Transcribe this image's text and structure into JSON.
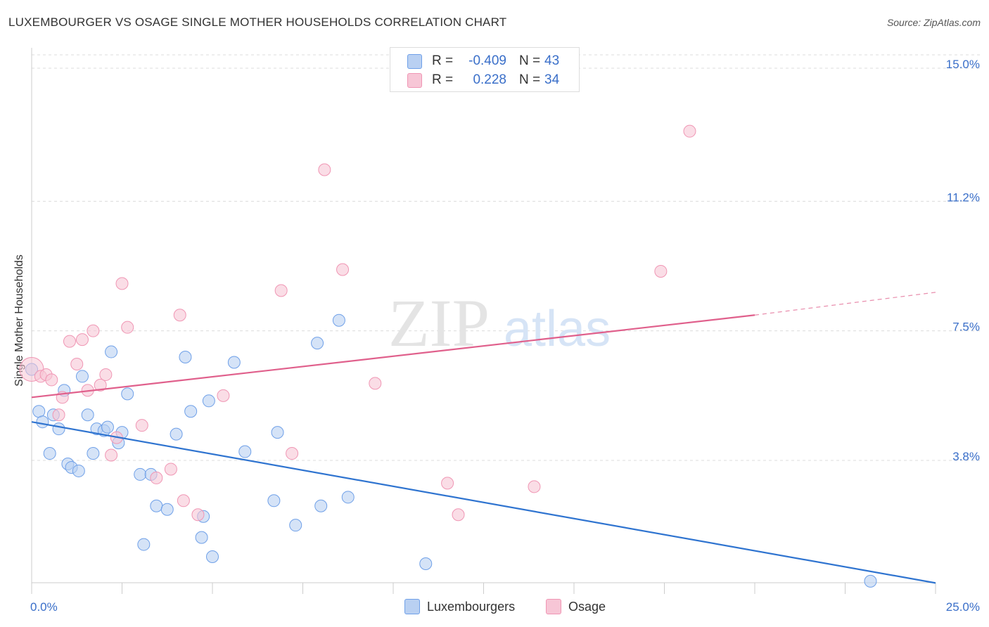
{
  "chart_data": {
    "type": "scatter",
    "title": "LUXEMBOURGER VS OSAGE SINGLE MOTHER HOUSEHOLDS CORRELATION CHART",
    "source": "Source: ZipAtlas.com",
    "ylabel": "Single Mother Households",
    "xlabel": "",
    "xlim": [
      0,
      25
    ],
    "ylim": [
      0,
      15.5
    ],
    "x_tick_labels": [
      "0.0%",
      "25.0%"
    ],
    "y_ticks": [
      {
        "value": 15.0,
        "label": "15.0%"
      },
      {
        "value": 11.2,
        "label": "11.2%"
      },
      {
        "value": 7.5,
        "label": "7.5%"
      },
      {
        "value": 3.8,
        "label": "3.8%"
      }
    ],
    "watermark": "ZIPatlas",
    "legend": [
      {
        "r_label": "R =",
        "r_value": "-0.409",
        "n_label": "N =",
        "n_value": "43"
      },
      {
        "r_label": "R =",
        "r_value": "0.228",
        "n_label": "N =",
        "n_value": "34"
      }
    ],
    "series": [
      {
        "name": "Luxembourgers",
        "color": "#6fa0e8",
        "fill": "#b9d0f2",
        "line_color": "#2f74d0",
        "trend": {
          "x0": 0,
          "y0": 4.9,
          "x1": 25,
          "y1": 0.3
        },
        "points": [
          [
            0.0,
            6.4
          ],
          [
            0.2,
            5.2
          ],
          [
            0.3,
            4.9
          ],
          [
            0.5,
            4.0
          ],
          [
            0.6,
            5.1
          ],
          [
            0.75,
            4.7
          ],
          [
            0.9,
            5.8
          ],
          [
            1.0,
            3.7
          ],
          [
            1.1,
            3.6
          ],
          [
            1.3,
            3.5
          ],
          [
            1.4,
            6.2
          ],
          [
            1.55,
            5.1
          ],
          [
            1.7,
            4.0
          ],
          [
            1.8,
            4.7
          ],
          [
            2.0,
            4.65
          ],
          [
            2.1,
            4.75
          ],
          [
            2.2,
            6.9
          ],
          [
            2.4,
            4.3
          ],
          [
            2.5,
            4.6
          ],
          [
            2.65,
            5.7
          ],
          [
            3.0,
            3.4
          ],
          [
            3.1,
            1.4
          ],
          [
            3.3,
            3.4
          ],
          [
            3.45,
            2.5
          ],
          [
            3.75,
            2.4
          ],
          [
            4.0,
            4.55
          ],
          [
            4.25,
            6.75
          ],
          [
            4.4,
            5.2
          ],
          [
            4.7,
            1.6
          ],
          [
            4.75,
            2.2
          ],
          [
            4.9,
            5.5
          ],
          [
            5.0,
            1.05
          ],
          [
            5.6,
            6.6
          ],
          [
            5.9,
            4.05
          ],
          [
            6.7,
            2.65
          ],
          [
            6.8,
            4.6
          ],
          [
            7.3,
            1.95
          ],
          [
            7.9,
            7.15
          ],
          [
            8.0,
            2.5
          ],
          [
            8.5,
            7.8
          ],
          [
            8.75,
            2.75
          ],
          [
            10.9,
            0.85
          ],
          [
            23.2,
            0.35
          ]
        ]
      },
      {
        "name": "Osage",
        "color": "#f096b4",
        "fill": "#f7c6d6",
        "line_color": "#e0608c",
        "trend": {
          "x0": 0,
          "y0": 5.6,
          "x1": 20,
          "y1": 7.95,
          "x_dash_end": 25,
          "y_dash_end": 8.6
        },
        "points": [
          [
            0.0,
            6.4
          ],
          [
            0.25,
            6.2
          ],
          [
            0.4,
            6.25
          ],
          [
            0.55,
            6.1
          ],
          [
            0.75,
            5.1
          ],
          [
            0.85,
            5.6
          ],
          [
            1.05,
            7.2
          ],
          [
            1.25,
            6.55
          ],
          [
            1.4,
            7.25
          ],
          [
            1.55,
            5.8
          ],
          [
            1.7,
            7.5
          ],
          [
            1.9,
            5.95
          ],
          [
            2.05,
            6.25
          ],
          [
            2.2,
            3.95
          ],
          [
            2.35,
            4.45
          ],
          [
            2.5,
            8.85
          ],
          [
            2.65,
            7.6
          ],
          [
            3.05,
            4.8
          ],
          [
            3.45,
            3.3
          ],
          [
            3.85,
            3.55
          ],
          [
            4.1,
            7.95
          ],
          [
            4.2,
            2.65
          ],
          [
            4.6,
            2.25
          ],
          [
            5.3,
            5.65
          ],
          [
            6.9,
            8.65
          ],
          [
            7.2,
            4.0
          ],
          [
            8.1,
            12.1
          ],
          [
            8.6,
            9.25
          ],
          [
            9.5,
            6.0
          ],
          [
            11.5,
            3.15
          ],
          [
            11.8,
            2.25
          ],
          [
            13.9,
            3.05
          ],
          [
            17.4,
            9.2
          ],
          [
            18.2,
            13.2
          ]
        ]
      }
    ]
  }
}
